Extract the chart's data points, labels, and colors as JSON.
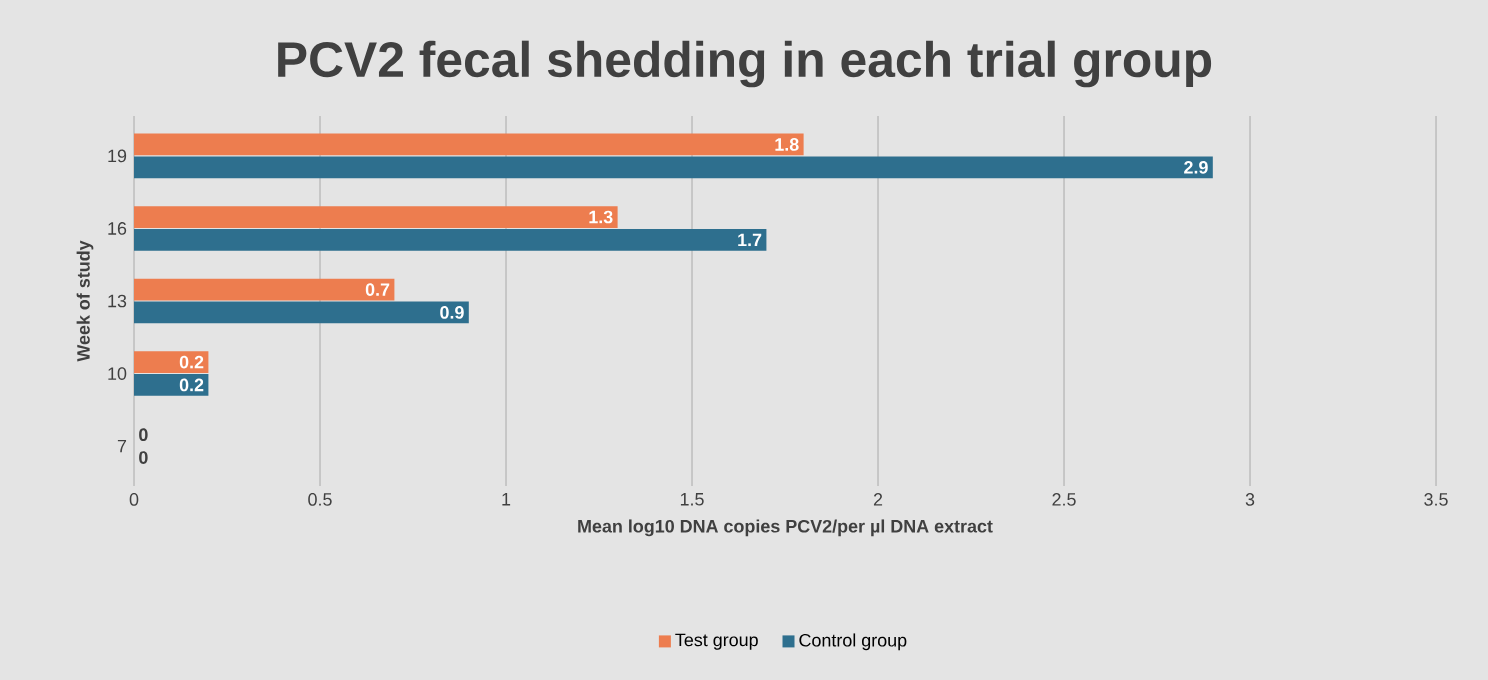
{
  "chart_data": {
    "type": "bar",
    "orientation": "horizontal",
    "title": "PCV2 fecal shedding in each trial group",
    "xlabel": "Mean log10 DNA copies PCV2/per µl DNA extract",
    "ylabel": "Week of study",
    "categories": [
      "19",
      "16",
      "13",
      "10",
      "7"
    ],
    "series": [
      {
        "name": "Test group",
        "color": "#ed7d4f",
        "values": [
          1.8,
          1.3,
          0.7,
          0.2,
          0
        ]
      },
      {
        "name": "Control group",
        "color": "#2e6f8e",
        "values": [
          2.9,
          1.7,
          0.9,
          0.2,
          0
        ]
      }
    ],
    "xlim": [
      0,
      3.5
    ],
    "xticks": [
      0,
      0.5,
      1,
      1.5,
      2,
      2.5,
      3,
      3.5
    ],
    "grid": "x",
    "legend": "bottom",
    "data_labels": true
  }
}
